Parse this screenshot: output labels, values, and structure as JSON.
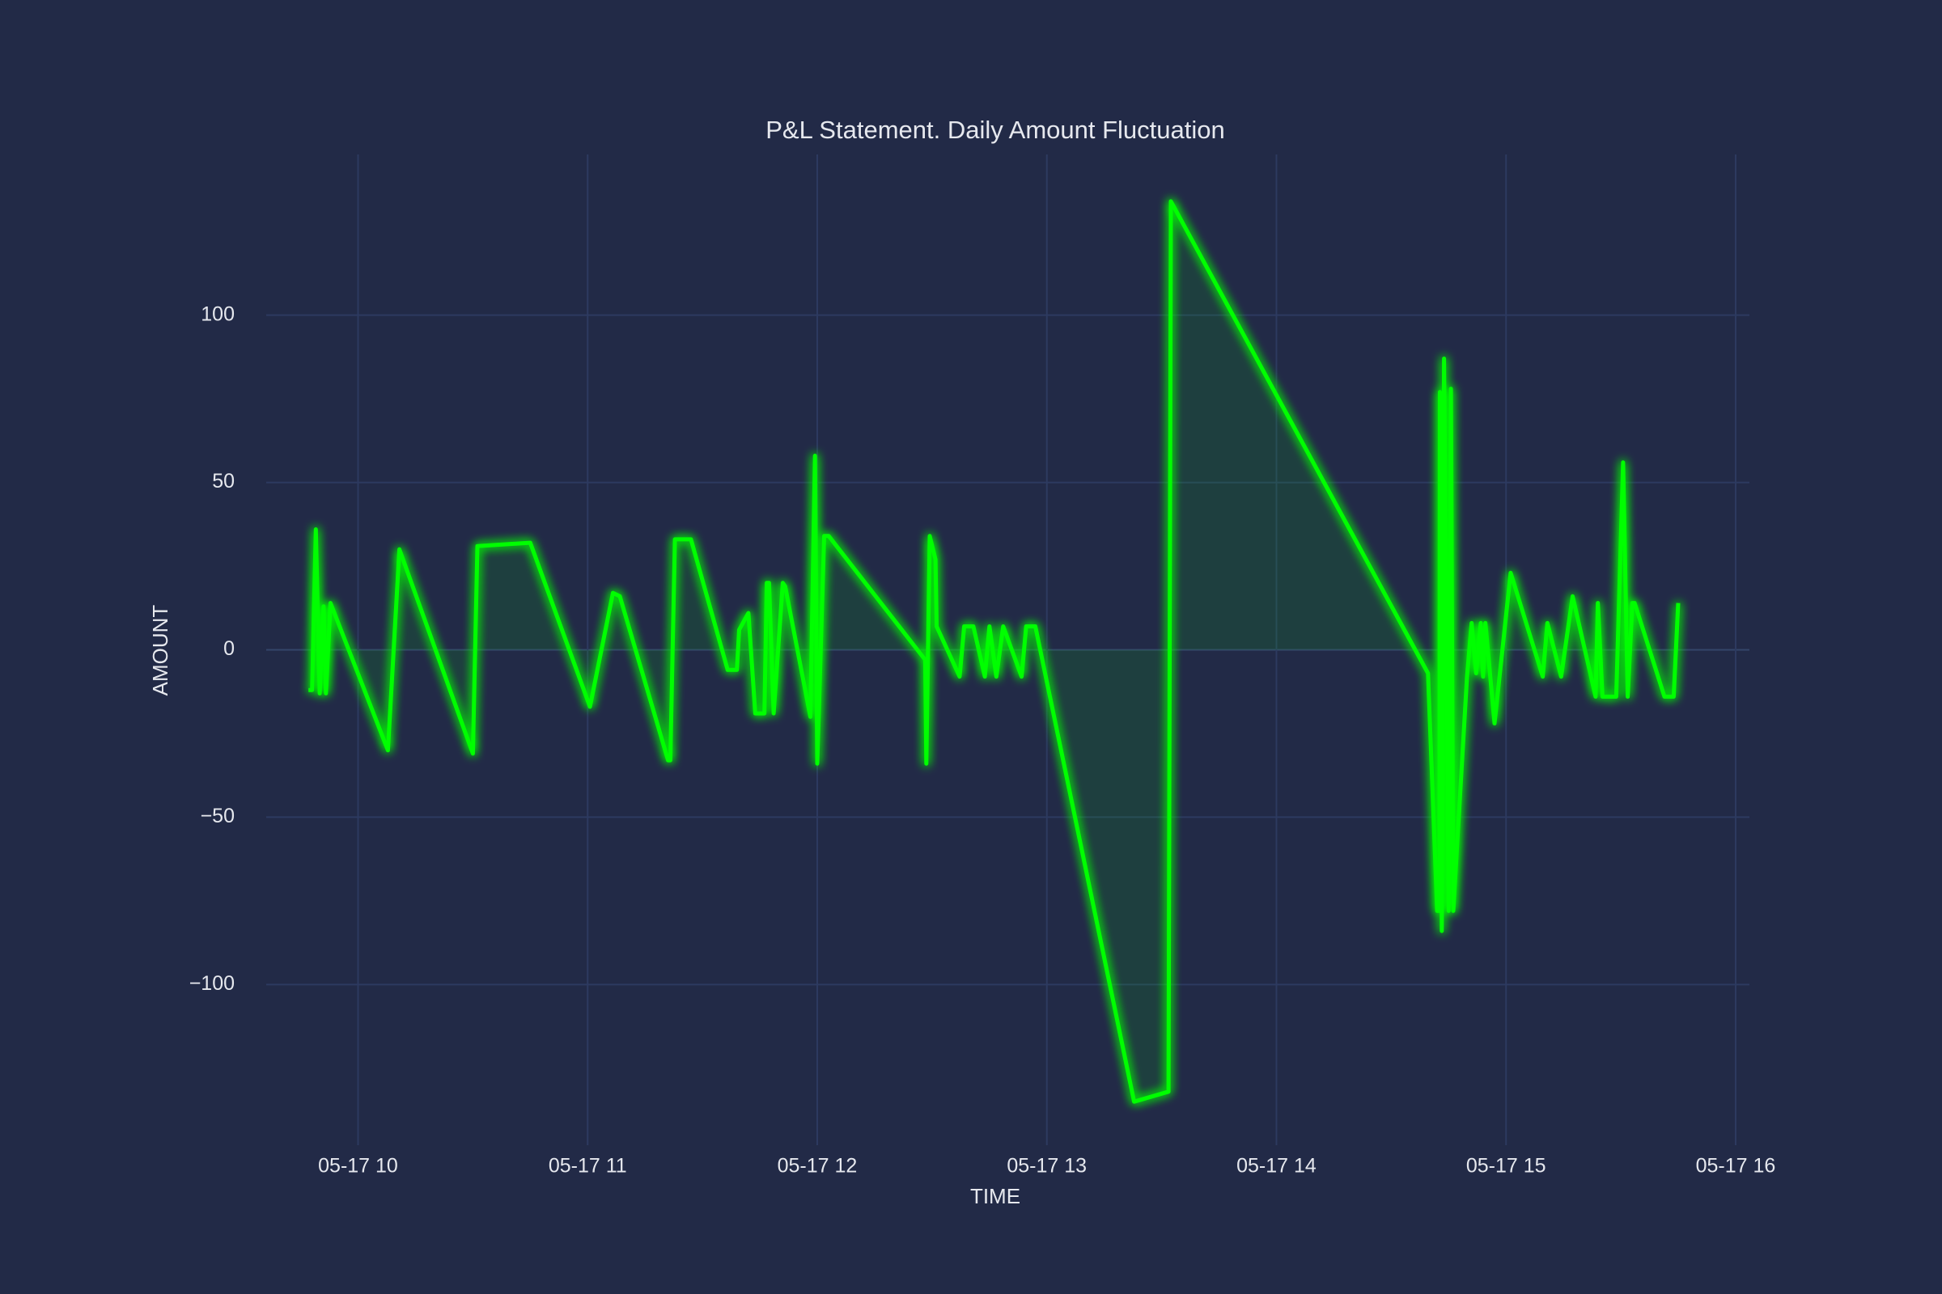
{
  "chart_data": {
    "type": "line",
    "title": "P&L Statement. Daily Amount Fluctuation",
    "x_label": "TIME",
    "y_label": "AMOUNT",
    "x": [
      9.784,
      9.8,
      9.816,
      9.833,
      9.85,
      9.86,
      9.88,
      10.13,
      10.18,
      10.5,
      10.52,
      10.75,
      11.01,
      11.11,
      11.14,
      11.35,
      11.36,
      11.38,
      11.45,
      11.61,
      11.65,
      11.66,
      11.7,
      11.73,
      11.77,
      11.78,
      11.79,
      11.81,
      11.85,
      11.86,
      11.97,
      11.99,
      12.0,
      12.03,
      12.05,
      12.47,
      12.475,
      12.49,
      12.515,
      12.52,
      12.62,
      12.64,
      12.68,
      12.73,
      12.75,
      12.78,
      12.81,
      12.89,
      12.91,
      12.95,
      13.38,
      13.53,
      13.54,
      14.66,
      14.7,
      14.71,
      14.712,
      14.72,
      14.73,
      14.75,
      14.76,
      14.77,
      14.83,
      14.85,
      14.87,
      14.89,
      14.9,
      14.91,
      14.95,
      15.02,
      15.16,
      15.18,
      15.24,
      15.29,
      15.39,
      15.4,
      15.42,
      15.48,
      15.51,
      15.53,
      15.55,
      15.56,
      15.69,
      15.73,
      15.75
    ],
    "values": [
      -12,
      -12,
      36,
      -13,
      13,
      -13,
      14,
      -30,
      30,
      -31,
      31,
      32,
      -17,
      17,
      16,
      -33,
      -33,
      33,
      33,
      -6,
      -6,
      6,
      11,
      -19,
      -19,
      20,
      20,
      -19,
      20,
      19,
      -20,
      58,
      -34,
      34,
      34,
      -3,
      -34,
      34,
      27,
      7,
      -8,
      7,
      7,
      -8,
      7,
      -8,
      7,
      -8,
      7,
      7,
      -135,
      -132,
      134,
      -7,
      -78,
      -78,
      77,
      -84,
      87,
      -78,
      78,
      -78,
      -8,
      8,
      -7,
      8,
      -8,
      8,
      -22,
      23,
      -8,
      8,
      -8,
      16,
      -14,
      14,
      -14,
      -14,
      56,
      -14,
      14,
      14,
      -14,
      -14,
      14
    ],
    "color": "#00ff00",
    "xlim": [
      9.6,
      16.06
    ],
    "xticks": [
      {
        "value": 10,
        "label": "05-17 10"
      },
      {
        "value": 11,
        "label": "05-17 11"
      },
      {
        "value": 12,
        "label": "05-17 12"
      },
      {
        "value": 13,
        "label": "05-17 13"
      },
      {
        "value": 14,
        "label": "05-17 14"
      },
      {
        "value": 15,
        "label": "05-17 15"
      },
      {
        "value": 16,
        "label": "05-17 16"
      }
    ],
    "ylim": [
      -148,
      148
    ],
    "yticks": [
      {
        "value": -100,
        "label": "−100"
      },
      {
        "value": -50,
        "label": "−50"
      },
      0,
      50,
      100
    ],
    "grid": true
  }
}
